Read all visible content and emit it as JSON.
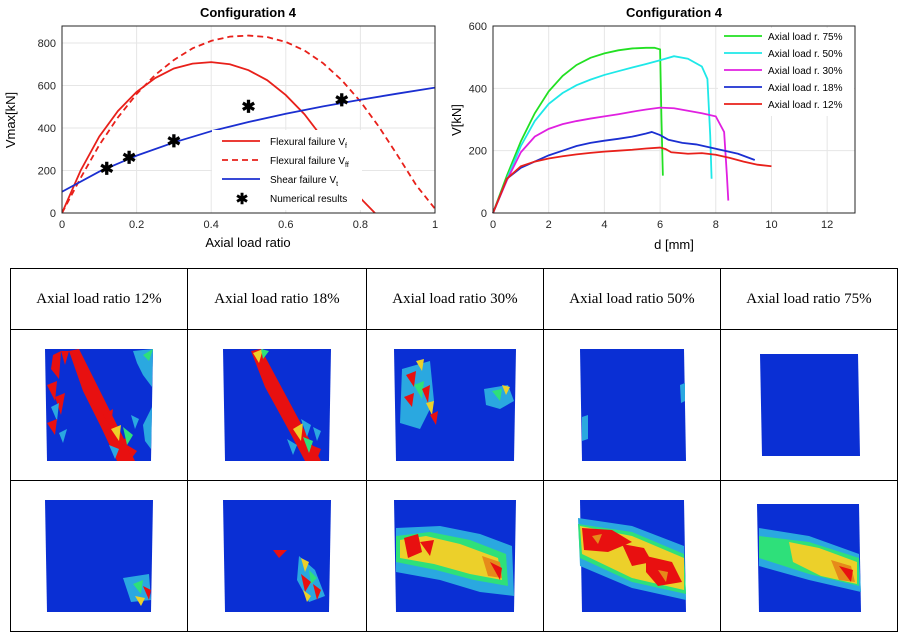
{
  "chart_data": [
    {
      "type": "line",
      "title": "Configuration 4",
      "xlabel": "Axial load ratio",
      "ylabel": "Vmax[kN]",
      "xlim": [
        0,
        1
      ],
      "ylim": [
        0,
        880
      ],
      "xticks": [
        "0",
        "0.2",
        "0.4",
        "0.6",
        "0.8",
        "1"
      ],
      "yticks": [
        "0",
        "200",
        "400",
        "600",
        "800"
      ],
      "grid": true,
      "legend_position": "bottom-right",
      "legend_main": [
        "Flexural failure V",
        "Flexural failure V",
        "Shear failure V",
        "Numerical results"
      ],
      "legend_sub": [
        "f",
        "ff",
        "t",
        ""
      ],
      "series": [
        {
          "name": "Flexural failure Vf",
          "color": "#e8201a",
          "style": "solid",
          "x": [
            0,
            0.05,
            0.1,
            0.15,
            0.2,
            0.25,
            0.3,
            0.35,
            0.4,
            0.45,
            0.5,
            0.55,
            0.6,
            0.65,
            0.7,
            0.75,
            0.8,
            0.85
          ],
          "y": [
            0,
            200,
            360,
            480,
            570,
            635,
            680,
            703,
            710,
            700,
            672,
            625,
            555,
            465,
            350,
            215,
            70,
            -20
          ]
        },
        {
          "name": "Flexural failure Vff",
          "color": "#e8201a",
          "style": "dashed",
          "x": [
            0,
            0.05,
            0.1,
            0.15,
            0.2,
            0.25,
            0.3,
            0.35,
            0.4,
            0.45,
            0.5,
            0.55,
            0.6,
            0.65,
            0.7,
            0.75,
            0.8,
            0.85,
            0.9,
            0.95,
            1.0
          ],
          "y": [
            0,
            165,
            320,
            450,
            560,
            650,
            720,
            775,
            810,
            830,
            835,
            828,
            805,
            765,
            705,
            625,
            525,
            405,
            270,
            130,
            20
          ]
        },
        {
          "name": "Shear failure Vt",
          "color": "#1b2fd1",
          "style": "solid",
          "x": [
            0,
            0.1,
            0.2,
            0.3,
            0.4,
            0.5,
            0.6,
            0.7,
            0.8,
            0.9,
            1.0
          ],
          "y": [
            100,
            195,
            270,
            332,
            385,
            428,
            467,
            502,
            533,
            562,
            590
          ]
        },
        {
          "name": "Numerical results",
          "color": "#000000",
          "style": "marker",
          "x": [
            0.12,
            0.18,
            0.3,
            0.5,
            0.75
          ],
          "y": [
            210,
            262,
            338,
            502,
            532
          ]
        }
      ]
    },
    {
      "type": "line",
      "title": "Configuration 4",
      "xlabel": "d [mm]",
      "ylabel": "V[kN]",
      "xlim": [
        0,
        13
      ],
      "ylim": [
        0,
        600
      ],
      "xticks": [
        "0",
        "2",
        "4",
        "6",
        "8",
        "10",
        "12"
      ],
      "yticks": [
        "0",
        "200",
        "400",
        "600"
      ],
      "grid": true,
      "legend_position": "top-right",
      "series": [
        {
          "name": "Axial load r. 75%",
          "color": "#22e022",
          "x": [
            0,
            0.5,
            1.0,
            1.5,
            2.0,
            2.5,
            3.0,
            3.5,
            4.0,
            4.5,
            5.0,
            5.5,
            5.8,
            6.0,
            6.05,
            6.1
          ],
          "y": [
            0,
            120,
            230,
            320,
            390,
            440,
            475,
            498,
            512,
            522,
            528,
            530,
            530,
            525,
            300,
            120
          ]
        },
        {
          "name": "Axial load r. 50%",
          "color": "#1ee8e8",
          "x": [
            0,
            0.5,
            1.0,
            1.5,
            2.0,
            2.5,
            3.0,
            3.5,
            4.0,
            4.5,
            5.0,
            5.5,
            6.0,
            6.5,
            7.0,
            7.5,
            7.7,
            7.8,
            7.85
          ],
          "y": [
            0,
            110,
            215,
            295,
            350,
            385,
            410,
            428,
            443,
            455,
            467,
            478,
            490,
            503,
            495,
            470,
            430,
            250,
            110
          ]
        },
        {
          "name": "Axial load r. 30%",
          "color": "#e020e0",
          "x": [
            0,
            0.5,
            1.0,
            1.5,
            2.0,
            2.5,
            3.0,
            3.5,
            4.0,
            4.5,
            5.0,
            5.5,
            6.0,
            6.5,
            7.0,
            7.5,
            8.0,
            8.3,
            8.4,
            8.45
          ],
          "y": [
            0,
            105,
            195,
            245,
            270,
            285,
            295,
            303,
            310,
            317,
            325,
            332,
            338,
            336,
            328,
            320,
            310,
            260,
            120,
            40
          ]
        },
        {
          "name": "Axial load r. 18%",
          "color": "#1b2fd1",
          "x": [
            0,
            0.5,
            1.0,
            1.5,
            2.0,
            2.5,
            3.0,
            3.5,
            4.0,
            4.5,
            5.0,
            5.5,
            5.7,
            6.0,
            6.3,
            6.8,
            7.3,
            7.8,
            8.3,
            8.8,
            9.4
          ],
          "y": [
            0,
            110,
            145,
            165,
            185,
            200,
            215,
            225,
            232,
            238,
            245,
            255,
            260,
            250,
            235,
            225,
            220,
            210,
            200,
            190,
            170
          ]
        },
        {
          "name": "Axial load r. 12%",
          "color": "#e8201a",
          "x": [
            0,
            0.5,
            1.0,
            1.5,
            2.0,
            2.5,
            3.0,
            3.5,
            4.0,
            4.5,
            5.0,
            5.5,
            6.0,
            6.2,
            6.4,
            7.0,
            7.5,
            8.0,
            8.5,
            9.0,
            9.5,
            10.0
          ],
          "y": [
            0,
            110,
            150,
            165,
            175,
            182,
            188,
            193,
            197,
            200,
            203,
            207,
            210,
            205,
            195,
            190,
            192,
            187,
            177,
            165,
            155,
            150
          ]
        }
      ]
    }
  ],
  "table": {
    "headers": [
      "Axial load ratio 12%",
      "Axial load ratio 18%",
      "Axial load ratio 30%",
      "Axial load ratio 50%",
      "Axial load ratio 75%"
    ]
  }
}
